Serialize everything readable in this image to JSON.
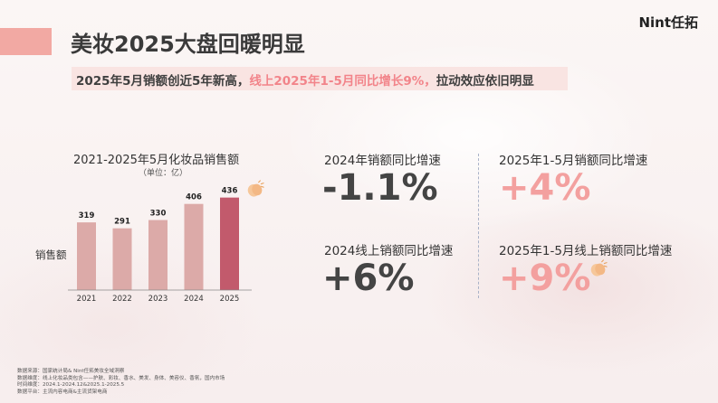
{
  "brand": "Nint任拓",
  "title": "美妆2025大盘回暖明显",
  "subtitle": {
    "part1": "2025年5月销额创近5年新高，",
    "part2": "线上2025年1-5月同比增长9%，",
    "part3": "拉动效应依旧明显"
  },
  "chart_data": {
    "type": "bar",
    "title": "2021-2025年5月化妆品销售额",
    "unit": "（单位：亿）",
    "ylabel": "销售额",
    "categories": [
      "2021",
      "2022",
      "2023",
      "2024",
      "2025"
    ],
    "values": [
      319,
      291,
      330,
      406,
      436
    ],
    "colors": [
      "#dcaaa8",
      "#dcaaa8",
      "#dcaaa8",
      "#dcaaa8",
      "#c25a6c"
    ],
    "ylim": [
      0,
      460
    ],
    "grid": false,
    "legend": "none"
  },
  "stats": {
    "s1": {
      "label": "2024年销额同比增速",
      "value": "-1.1%"
    },
    "s2": {
      "label": "2025年1-5月销额同比增速",
      "value": "+4%"
    },
    "s3": {
      "label": "2024线上销额同比增速",
      "value": "+6%"
    },
    "s4": {
      "label": "2025年1-5月线上销额同比增速",
      "value": "+9%"
    }
  },
  "footer": {
    "line1": "数据来源：国家统计局& Nint任拓美妆全域洞察",
    "line2": "数据维度：线上化妆品类包含——护肤、彩妆、香水、美发、身体、美容仪、香氛，国内市场",
    "line3": "时间维度：2024.1-2024.12&2025.1-2025.5",
    "line4": "数据平台：主流内容电商&主流货架电商"
  },
  "colors": {
    "accent": "#f2a9a3",
    "highlight": "#f2848a",
    "bar": "#dcaaa8",
    "bar_highlight": "#c25a6c",
    "stat_pink": "#f3a09f",
    "stat_dark": "#444444"
  },
  "icons": [
    "clapping-hands-icon"
  ]
}
